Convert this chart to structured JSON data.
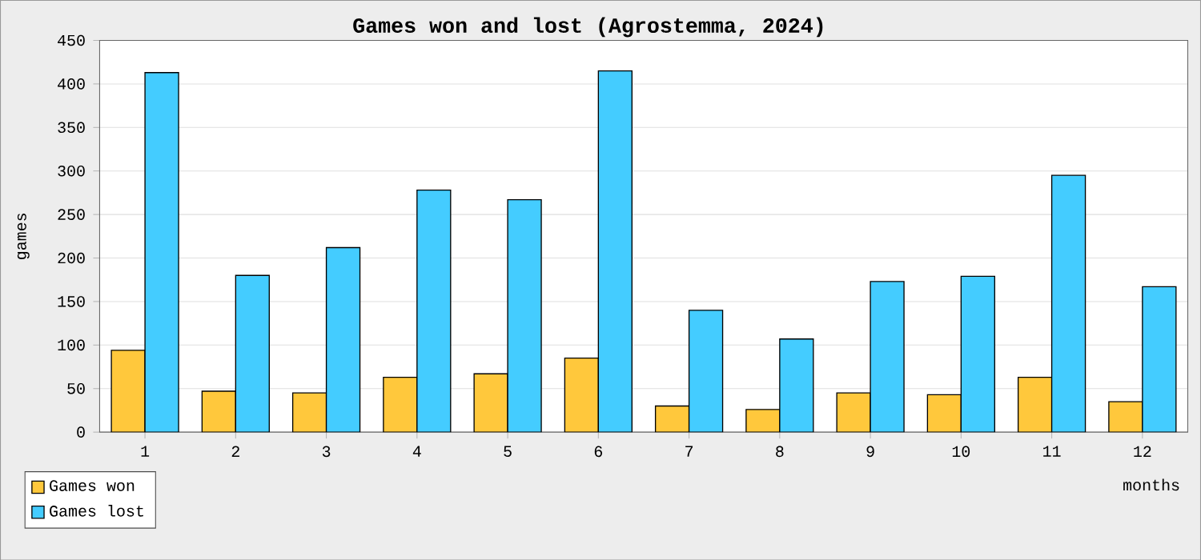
{
  "chart_data": {
    "type": "bar",
    "title": "Games won and lost (Agrostemma, 2024)",
    "xlabel": "months",
    "ylabel": "games",
    "categories": [
      "1",
      "2",
      "3",
      "4",
      "5",
      "6",
      "7",
      "8",
      "9",
      "10",
      "11",
      "12"
    ],
    "series": [
      {
        "name": "Games won",
        "color": "#ffc83c",
        "values": [
          94,
          47,
          45,
          63,
          67,
          85,
          30,
          26,
          45,
          43,
          63,
          35
        ]
      },
      {
        "name": "Games lost",
        "color": "#44ccff",
        "values": [
          413,
          180,
          212,
          278,
          267,
          415,
          140,
          107,
          173,
          179,
          295,
          167
        ]
      }
    ],
    "ylim": [
      0,
      450
    ],
    "yticks": [
      0,
      50,
      100,
      150,
      200,
      250,
      300,
      350,
      400,
      450
    ],
    "grid": "y",
    "legend": "bottom left"
  }
}
